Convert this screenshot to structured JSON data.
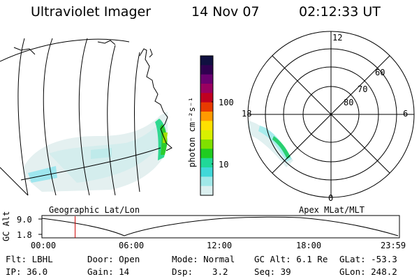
{
  "header": {
    "instrument": "Ultraviolet Imager",
    "date": "14 Nov 07",
    "time": "02:12:33 UT"
  },
  "geo_panel": {
    "label": "Geographic Lat/Lon"
  },
  "polar_panel": {
    "label": "Apex MLat/MLT",
    "mlt_labels": [
      "12",
      "18",
      "6",
      "0"
    ],
    "lat_labels": [
      "60",
      "70",
      "80"
    ]
  },
  "colorbar": {
    "unit_label": "photon cm⁻²s⁻¹",
    "ticks": [
      "100",
      "10"
    ],
    "colors": [
      "#101040",
      "#300050",
      "#6a0070",
      "#9a0060",
      "#c00020",
      "#e83a00",
      "#ff9a00",
      "#ffe000",
      "#d8f000",
      "#80e000",
      "#20cc20",
      "#20d898",
      "#40d8d8",
      "#a0e8e8",
      "#dcf0f0"
    ]
  },
  "altitude_plot": {
    "ylabel": "GC Alt",
    "y_ticks": [
      "9.0",
      "1.8"
    ],
    "x_ticks": [
      "00:00",
      "06:00",
      "12:00",
      "18:00",
      "23:59"
    ],
    "current_time_fraction": 0.093,
    "marker_color": "#d00000"
  },
  "status": {
    "filter": "Flt: LBHL",
    "ip": "IP: 36.0",
    "door": "Door: Open",
    "gain": "Gain: 14",
    "mode": "Mode: Normal",
    "dsp_label": "Dsp:",
    "dsp_value": "3.2",
    "gc_alt": "GC Alt: 6.1 Re",
    "seq": "Seq: 39",
    "glat": "GLat: -53.3",
    "glon": "GLon: 248.2"
  }
}
